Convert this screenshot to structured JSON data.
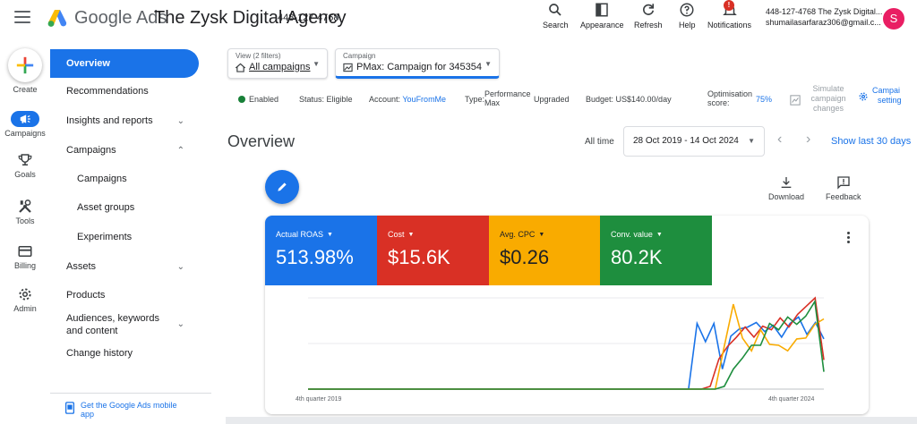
{
  "header": {
    "brand": "Google Ads",
    "account_name": "The Zysk Digital Agency",
    "account_id": "448-127-4768",
    "tools": [
      {
        "label": "Search"
      },
      {
        "label": "Appearance"
      },
      {
        "label": "Refresh"
      },
      {
        "label": "Help"
      },
      {
        "label": "Notifications",
        "badge": "!"
      }
    ],
    "account_line1": "448-127-4768 The Zysk Digital...",
    "account_line2": "shumailasarfaraz306@gmail.c...",
    "avatar_initial": "S",
    "avatar_color": "#e91e63"
  },
  "rail": {
    "items": [
      {
        "label": "Create",
        "icon": "plus-icon"
      },
      {
        "label": "Campaigns",
        "icon": "campaigns-icon",
        "active": true
      },
      {
        "label": "Goals",
        "icon": "trophy-icon"
      },
      {
        "label": "Tools",
        "icon": "tools-icon"
      },
      {
        "label": "Billing",
        "icon": "credit-card-icon"
      },
      {
        "label": "Admin",
        "icon": "gear-icon"
      }
    ]
  },
  "nav": {
    "items": [
      {
        "label": "Overview",
        "active": true
      },
      {
        "label": "Recommendations"
      },
      {
        "label": "Insights and reports",
        "chevron": "down"
      },
      {
        "label": "Campaigns",
        "chevron": "up"
      },
      {
        "label": "Campaigns",
        "sub": true
      },
      {
        "label": "Asset groups",
        "sub": true
      },
      {
        "label": "Experiments",
        "sub": true
      },
      {
        "label": "Assets",
        "chevron": "down"
      },
      {
        "label": "Products"
      },
      {
        "label": "Audiences, keywords and content",
        "chevron": "down"
      },
      {
        "label": "Change history"
      }
    ],
    "mobile_app": "Get the Google Ads mobile app"
  },
  "filters": {
    "view_label": "View (2 filters)",
    "view_value": "All campaigns",
    "campaign_label": "Campaign",
    "campaign_value": "PMax: Campaign for 345354"
  },
  "status": {
    "enabled": "Enabled",
    "status_label": "Status:",
    "status_value": "Eligible",
    "account_label": "Account:",
    "account_value": "YouFromMe",
    "type_label": "Type:",
    "type_value_1": "Performance",
    "type_value_2": "Max",
    "upgraded": "Upgraded",
    "budget": "Budget: US$140.00/day",
    "opt_label_1": "Optimisation",
    "opt_label_2": "score:",
    "opt_value": "75%",
    "simulate_1": "Simulate",
    "simulate_2": "campaign",
    "simulate_3": "changes",
    "settings_1": "Campai",
    "settings_2": "setting"
  },
  "overview": {
    "title": "Overview",
    "date_label": "All time",
    "date_range": "28 Oct 2019 - 14 Oct 2024",
    "show_last": "Show last 30 days",
    "download": "Download",
    "feedback": "Feedback"
  },
  "metrics": [
    {
      "label": "Actual ROAS",
      "value": "513.98%",
      "color": "#1a73e8"
    },
    {
      "label": "Cost",
      "value": "$15.6K",
      "color": "#d93025"
    },
    {
      "label": "Avg. CPC",
      "value": "$0.26",
      "color": "#f9ab00"
    },
    {
      "label": "Conv. value",
      "value": "80.2K",
      "color": "#1e8e3e"
    }
  ],
  "chart_data": {
    "type": "line",
    "x_labels": [
      "4th quarter 2019",
      "4th quarter 2024"
    ],
    "series": [
      {
        "name": "Actual ROAS",
        "color": "#1a73e8",
        "values": [
          0,
          0,
          0,
          0,
          0,
          0,
          0,
          0,
          0,
          0,
          0,
          0,
          0,
          0,
          0,
          0,
          0,
          0,
          0,
          0,
          0,
          0,
          0,
          0,
          0,
          0,
          0,
          0,
          0,
          0,
          0,
          0,
          0,
          0,
          0,
          0,
          0,
          0,
          0,
          0,
          0,
          0,
          0,
          0,
          0,
          0,
          0.72,
          0.52,
          0.72,
          0.22,
          0.58,
          0.66,
          0.68,
          0.73,
          0.63,
          0.7,
          0.57,
          0.72,
          0.79,
          0.6,
          0.73,
          0.55
        ]
      },
      {
        "name": "Cost",
        "color": "#d93025",
        "values": [
          0,
          0,
          0,
          0,
          0,
          0,
          0,
          0,
          0,
          0,
          0,
          0,
          0,
          0,
          0,
          0,
          0,
          0,
          0,
          0,
          0,
          0,
          0,
          0,
          0,
          0,
          0,
          0,
          0,
          0,
          0,
          0,
          0,
          0,
          0,
          0,
          0,
          0,
          0,
          0,
          0,
          0,
          0,
          0,
          0,
          0,
          0.03,
          0.33,
          0.47,
          0.57,
          0.68,
          0.57,
          0.69,
          0.65,
          0.78,
          0.68,
          0.82,
          0.91,
          1.0,
          0.32
        ]
      },
      {
        "name": "Avg. CPC",
        "color": "#f9ab00",
        "values": [
          0,
          0,
          0,
          0,
          0,
          0,
          0,
          0,
          0,
          0,
          0,
          0,
          0,
          0,
          0,
          0,
          0,
          0,
          0,
          0,
          0,
          0,
          0,
          0,
          0,
          0,
          0,
          0,
          0,
          0,
          0,
          0,
          0,
          0,
          0,
          0,
          0,
          0,
          0,
          0,
          0,
          0,
          0,
          0,
          0,
          0,
          0.47,
          0.93,
          0.56,
          0.42,
          0.65,
          0.49,
          0.48,
          0.42,
          0.55,
          0.56,
          0.71,
          0.77
        ]
      },
      {
        "name": "Conv. value",
        "color": "#1e8e3e",
        "values": [
          0,
          0,
          0,
          0,
          0,
          0,
          0,
          0,
          0,
          0,
          0,
          0,
          0,
          0,
          0,
          0,
          0,
          0,
          0,
          0,
          0,
          0,
          0,
          0,
          0,
          0,
          0,
          0,
          0,
          0,
          0,
          0,
          0,
          0,
          0,
          0,
          0,
          0,
          0,
          0,
          0,
          0,
          0,
          0,
          0,
          0,
          0.03,
          0.22,
          0.34,
          0.48,
          0.48,
          0.72,
          0.65,
          0.79,
          0.71,
          0.8,
          0.96,
          0.19
        ]
      }
    ]
  }
}
